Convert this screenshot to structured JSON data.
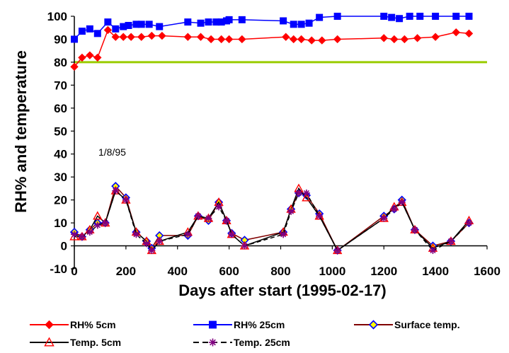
{
  "chart_data": {
    "type": "line",
    "title": "",
    "xlabel": "Days after start (1995-02-17)",
    "ylabel": "RH% and temperature",
    "xlim": [
      0,
      1600
    ],
    "ylim": [
      -10,
      100
    ],
    "xticks": [
      0,
      200,
      400,
      600,
      800,
      1000,
      1200,
      1400,
      1600
    ],
    "yticks": [
      -10,
      0,
      10,
      20,
      30,
      40,
      50,
      60,
      70,
      80,
      90,
      100
    ],
    "grid": false,
    "legend_position": "bottom",
    "annotation": "1/8/95",
    "reference_line": {
      "y": 80,
      "color": "#99cc00"
    },
    "series": [
      {
        "name": "RH% 5cm",
        "color": "#ff0000",
        "marker": "diamond",
        "dash": "solid",
        "x": [
          0,
          30,
          60,
          90,
          130,
          160,
          190,
          220,
          260,
          300,
          340,
          440,
          490,
          530,
          570,
          600,
          650,
          820,
          850,
          880,
          920,
          960,
          1020,
          1200,
          1240,
          1280,
          1330,
          1400,
          1480,
          1530
        ],
        "y": [
          78,
          82,
          83,
          82,
          94,
          91,
          91,
          91,
          91,
          91.5,
          91.5,
          91,
          91,
          90,
          90,
          90,
          90,
          91,
          90,
          90,
          89.5,
          89.5,
          90,
          90.5,
          90,
          90,
          90.5,
          91,
          93,
          92.5
        ]
      },
      {
        "name": "RH% 25cm",
        "color": "#0000ff",
        "marker": "square",
        "dash": "solid",
        "x": [
          0,
          30,
          60,
          90,
          130,
          160,
          190,
          210,
          240,
          260,
          290,
          330,
          440,
          490,
          520,
          550,
          570,
          590,
          600,
          650,
          810,
          850,
          880,
          910,
          950,
          1020,
          1200,
          1230,
          1260,
          1300,
          1340,
          1400,
          1480,
          1530
        ],
        "y": [
          90,
          93.5,
          94.5,
          92.5,
          97.5,
          94.5,
          95.5,
          96,
          96.5,
          96.5,
          96.5,
          95.5,
          97.5,
          97,
          97.5,
          97.5,
          97.5,
          98,
          98.5,
          98.5,
          98,
          96.5,
          96.5,
          97,
          99.5,
          100,
          100,
          99.5,
          99,
          100,
          100,
          100,
          100,
          100
        ]
      },
      {
        "name": "Surface temp.",
        "color": "#800000",
        "marker": "open-diamond",
        "marker_color": "#0000ff",
        "marker_fill": "#ffff00",
        "dash": "solid",
        "x": [
          0,
          30,
          60,
          90,
          120,
          160,
          200,
          240,
          280,
          300,
          330,
          440,
          480,
          520,
          560,
          590,
          610,
          660,
          810,
          840,
          870,
          900,
          950,
          1020,
          1200,
          1240,
          1270,
          1320,
          1390,
          1460,
          1530
        ],
        "y": [
          6,
          4,
          7,
          10,
          10,
          26,
          21,
          6,
          2,
          -1,
          4.5,
          4.5,
          13,
          11,
          19,
          11,
          5.5,
          2.5,
          6,
          16,
          23,
          22,
          14,
          -2,
          13,
          16,
          20,
          7,
          0,
          2,
          10
        ]
      },
      {
        "name": "Temp. 5cm",
        "color": "#000000",
        "marker": "open-triangle",
        "marker_color": "#ff0000",
        "dash": "solid",
        "x": [
          0,
          30,
          60,
          90,
          120,
          160,
          200,
          240,
          280,
          300,
          330,
          440,
          480,
          520,
          560,
          590,
          610,
          660,
          810,
          840,
          870,
          900,
          950,
          1020,
          1200,
          1240,
          1270,
          1320,
          1390,
          1460,
          1530
        ],
        "y": [
          4,
          4,
          7,
          13,
          10,
          24,
          20,
          6,
          2,
          -2,
          2,
          6,
          13,
          12,
          19,
          11,
          5,
          0,
          6,
          16,
          25,
          21,
          13,
          -2,
          12,
          17,
          19,
          7,
          -1,
          2,
          11
        ]
      },
      {
        "name": "Temp. 25cm",
        "color": "#000000",
        "marker": "star",
        "marker_color": "#800080",
        "dash": "dashed",
        "x": [
          0,
          30,
          60,
          90,
          120,
          160,
          200,
          240,
          280,
          300,
          330,
          440,
          480,
          520,
          560,
          590,
          610,
          660,
          810,
          840,
          870,
          900,
          950,
          1020,
          1200,
          1240,
          1270,
          1320,
          1390,
          1460,
          1530
        ],
        "y": [
          5,
          4,
          6,
          9,
          10,
          24,
          20,
          5,
          1,
          -2,
          2,
          5,
          13,
          12,
          17,
          11,
          5,
          0,
          5,
          15,
          23,
          23,
          13,
          -2,
          12,
          16,
          19,
          7,
          -2,
          2,
          10
        ]
      }
    ]
  }
}
